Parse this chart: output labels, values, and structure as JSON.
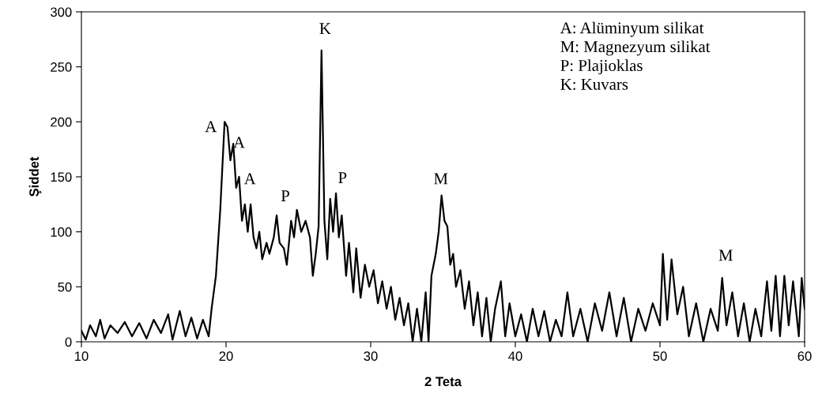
{
  "chart_data": {
    "type": "line",
    "xlabel": "2 Teta",
    "ylabel": "Şiddet",
    "xlim": [
      10,
      60
    ],
    "xticks": [
      10,
      20,
      30,
      40,
      50,
      60
    ],
    "ylim": [
      0,
      300
    ],
    "yticks": [
      0,
      50,
      100,
      150,
      200,
      250,
      300
    ],
    "grid": false,
    "legend": false,
    "marker": "none",
    "line_style": "solid",
    "series": [
      {
        "color": "#000000",
        "x": [
          10,
          10.3,
          10.6,
          11,
          11.3,
          11.6,
          12,
          12.5,
          13,
          13.5,
          14,
          14.5,
          15,
          15.5,
          16,
          16.3,
          16.8,
          17.2,
          17.6,
          18,
          18.4,
          18.8,
          19,
          19.3,
          19.6,
          19.9,
          20.1,
          20.3,
          20.5,
          20.7,
          20.9,
          21.1,
          21.3,
          21.5,
          21.7,
          21.9,
          22.1,
          22.3,
          22.5,
          22.8,
          23.0,
          23.3,
          23.5,
          23.7,
          24.0,
          24.2,
          24.5,
          24.7,
          24.9,
          25.2,
          25.5,
          25.8,
          26.0,
          26.2,
          26.4,
          26.6,
          26.8,
          27.0,
          27.2,
          27.4,
          27.6,
          27.8,
          28.0,
          28.3,
          28.5,
          28.8,
          29.0,
          29.3,
          29.6,
          29.9,
          30.2,
          30.5,
          30.8,
          31.1,
          31.4,
          31.7,
          32.0,
          32.3,
          32.6,
          32.9,
          33.2,
          33.5,
          33.8,
          34.0,
          34.2,
          34.5,
          34.7,
          34.9,
          35.1,
          35.3,
          35.5,
          35.7,
          35.9,
          36.2,
          36.5,
          36.8,
          37.1,
          37.4,
          37.7,
          38.0,
          38.3,
          38.6,
          39.0,
          39.3,
          39.6,
          40,
          40.4,
          40.8,
          41.2,
          41.6,
          42,
          42.4,
          42.8,
          43.2,
          43.6,
          44,
          44.5,
          45,
          45.5,
          46,
          46.5,
          47,
          47.5,
          48,
          48.5,
          49,
          49.5,
          50,
          50.2,
          50.5,
          50.8,
          51.2,
          51.6,
          52,
          52.5,
          53,
          53.5,
          54,
          54.3,
          54.6,
          55,
          55.4,
          55.8,
          56.2,
          56.6,
          57,
          57.4,
          57.7,
          58,
          58.3,
          58.6,
          58.9,
          59.2,
          59.6,
          59.8,
          60
        ],
        "values": [
          10,
          2,
          15,
          5,
          20,
          3,
          15,
          8,
          18,
          5,
          17,
          3,
          20,
          8,
          25,
          2,
          28,
          5,
          22,
          3,
          20,
          5,
          30,
          60,
          120,
          200,
          195,
          165,
          180,
          140,
          150,
          110,
          125,
          100,
          125,
          95,
          85,
          100,
          75,
          90,
          80,
          95,
          115,
          90,
          85,
          70,
          110,
          95,
          120,
          100,
          110,
          95,
          60,
          80,
          105,
          265,
          110,
          75,
          130,
          100,
          135,
          95,
          115,
          60,
          90,
          45,
          85,
          40,
          70,
          50,
          65,
          35,
          55,
          30,
          50,
          20,
          40,
          15,
          35,
          0,
          30,
          0,
          45,
          0,
          60,
          80,
          100,
          133,
          110,
          105,
          70,
          80,
          50,
          65,
          30,
          55,
          15,
          45,
          5,
          40,
          0,
          30,
          55,
          5,
          35,
          5,
          25,
          0,
          30,
          5,
          28,
          0,
          20,
          5,
          45,
          5,
          30,
          0,
          35,
          10,
          45,
          5,
          40,
          0,
          30,
          10,
          35,
          15,
          80,
          20,
          75,
          25,
          50,
          5,
          35,
          0,
          30,
          10,
          58,
          15,
          45,
          5,
          35,
          0,
          30,
          5,
          55,
          10,
          60,
          5,
          60,
          15,
          55,
          5,
          58,
          30
        ]
      }
    ],
    "annotations": [
      "A",
      "A",
      "A",
      "P",
      "K",
      "P",
      "M",
      "M",
      "A: Alüminyum silikat",
      "M: Magnezyum silikat",
      "P: Plajioklas",
      "K: Kuvars"
    ]
  }
}
